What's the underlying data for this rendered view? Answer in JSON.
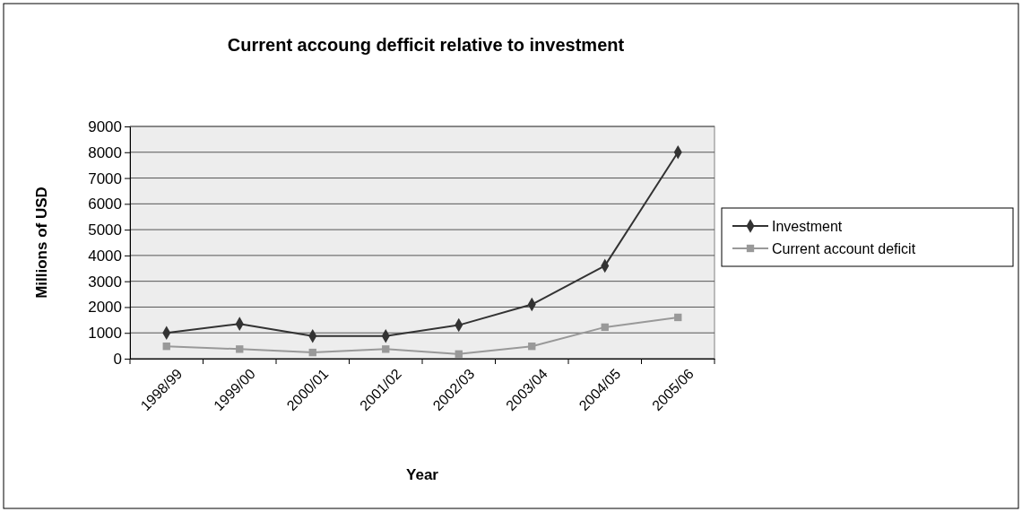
{
  "chart_data": {
    "type": "line",
    "title": "Current accoung defficit relative to investment",
    "xlabel": "Year",
    "ylabel": "Millions of USD",
    "categories": [
      "1998/99",
      "1999/00",
      "2000/01",
      "2001/02",
      "2002/03",
      "2003/04",
      "2004/05",
      "2005/06"
    ],
    "series": [
      {
        "name": "Investment",
        "color": "#333333",
        "marker": "diamond",
        "values": [
          1000,
          1350,
          880,
          880,
          1300,
          2100,
          3600,
          8000
        ]
      },
      {
        "name": "Current account deficit",
        "color": "#999999",
        "marker": "square",
        "values": [
          480,
          370,
          240,
          370,
          180,
          480,
          1220,
          1600
        ]
      }
    ],
    "ylim": [
      0,
      9000
    ],
    "yticks": [
      0,
      1000,
      2000,
      3000,
      4000,
      5000,
      6000,
      7000,
      8000,
      9000
    ],
    "grid": "y",
    "legend": "right",
    "line_style": "solid"
  }
}
